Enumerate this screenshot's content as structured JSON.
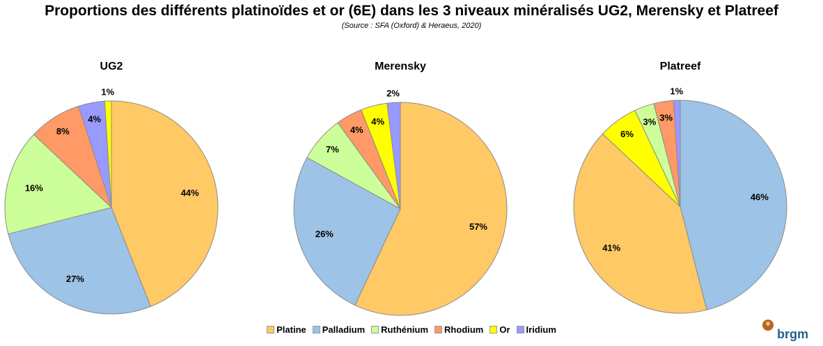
{
  "title": "Proportions des différents platinoïdes et or (6E) dans les 3 niveaux minéralisés UG2, Merensky et Platreef",
  "subtitle": "(Source : SFA (Oxford) & Heraeus, 2020)",
  "legend": [
    {
      "name": "Platine",
      "color": "#FFC966"
    },
    {
      "name": "Palladium",
      "color": "#9DC3E6"
    },
    {
      "name": "Ruthénium",
      "color": "#CCFF99"
    },
    {
      "name": "Rhodium",
      "color": "#FF9966"
    },
    {
      "name": "Or",
      "color": "#FFFF00"
    },
    {
      "name": "Iridium",
      "color": "#9999FF"
    }
  ],
  "logo": "brgm",
  "chart_data": [
    {
      "type": "pie",
      "title": "UG2",
      "categories": [
        "Platine",
        "Palladium",
        "Ruthénium",
        "Rhodium",
        "Iridium",
        "Or"
      ],
      "values": [
        44,
        27,
        16,
        8,
        4,
        1
      ],
      "unit": "%"
    },
    {
      "type": "pie",
      "title": "Merensky",
      "categories": [
        "Platine",
        "Palladium",
        "Ruthénium",
        "Rhodium",
        "Or",
        "Iridium"
      ],
      "values": [
        57,
        26,
        7,
        4,
        4,
        2
      ],
      "unit": "%"
    },
    {
      "type": "pie",
      "title": "Platreef",
      "categories": [
        "Palladium",
        "Platine",
        "Or",
        "Ruthénium",
        "Rhodium",
        "Iridium"
      ],
      "values": [
        46,
        41,
        6,
        3,
        3,
        1
      ],
      "unit": "%"
    }
  ]
}
